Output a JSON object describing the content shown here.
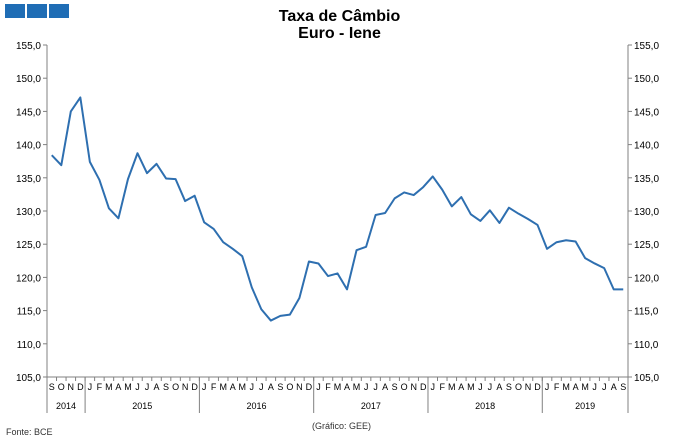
{
  "header": {
    "title_line1": "Taxa de Câmbio",
    "title_line2": "Euro - Iene"
  },
  "footer": {
    "source": "Fonte: BCE",
    "credit": "(Gráfico: GEE)"
  },
  "colors": {
    "line": "#2e6fb0",
    "logo": "#1f6db5",
    "axis": "#808080"
  },
  "chart_data": {
    "type": "line",
    "title": "Taxa de Câmbio Euro - Iene",
    "ylim": [
      105,
      155
    ],
    "yticks": [
      "105,0",
      "110,0",
      "115,0",
      "120,0",
      "125,0",
      "130,0",
      "135,0",
      "140,0",
      "145,0",
      "150,0",
      "155,0"
    ],
    "grid": false,
    "month_labels": [
      "S",
      "O",
      "N",
      "D",
      "J",
      "F",
      "M",
      "A",
      "M",
      "J",
      "J",
      "A",
      "S",
      "O",
      "N",
      "D",
      "J",
      "F",
      "M",
      "A",
      "M",
      "J",
      "J",
      "A",
      "S",
      "O",
      "N",
      "D",
      "J",
      "F",
      "M",
      "A",
      "M",
      "J",
      "J",
      "A",
      "S",
      "O",
      "N",
      "D",
      "J",
      "F",
      "M",
      "A",
      "M",
      "J",
      "J",
      "A",
      "S",
      "O",
      "N",
      "D",
      "J",
      "F",
      "M",
      "A",
      "M",
      "J",
      "J",
      "A",
      "S"
    ],
    "years": [
      {
        "label": "2014",
        "months": 4
      },
      {
        "label": "2015",
        "months": 12
      },
      {
        "label": "2016",
        "months": 12
      },
      {
        "label": "2017",
        "months": 12
      },
      {
        "label": "2018",
        "months": 12
      },
      {
        "label": "2019",
        "months": 9
      }
    ],
    "series": [
      {
        "values": [
          138.4,
          136.9,
          145.0,
          147.1,
          137.4,
          134.7,
          130.4,
          128.9,
          134.8,
          138.7,
          135.7,
          137.1,
          134.9,
          134.8,
          131.5,
          132.3,
          128.3,
          127.3,
          125.3,
          124.3,
          123.2,
          118.5,
          115.2,
          113.5,
          114.2,
          114.4,
          116.9,
          122.4,
          122.1,
          120.2,
          120.6,
          118.2,
          124.1,
          124.6,
          129.4,
          129.7,
          131.9,
          132.8,
          132.4,
          133.6,
          135.2,
          133.2,
          130.7,
          132.1,
          129.5,
          128.5,
          130.1,
          128.2,
          130.5,
          129.6,
          128.8,
          127.9,
          124.3,
          125.3,
          125.6,
          125.4,
          122.9,
          122.1,
          121.4,
          118.2,
          118.2
        ]
      }
    ]
  }
}
